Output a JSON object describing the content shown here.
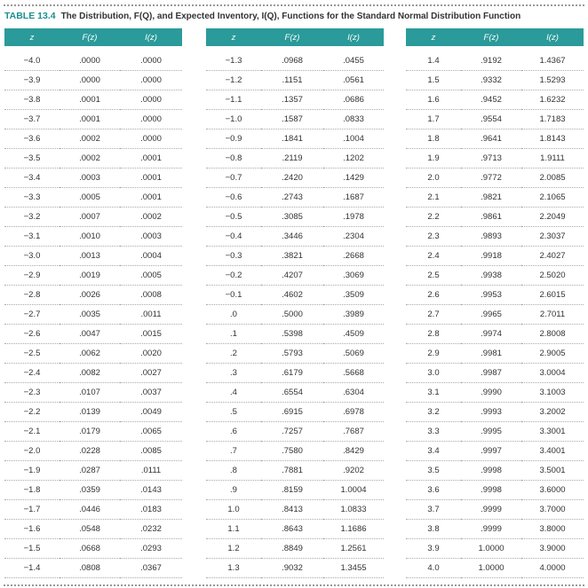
{
  "title": {
    "label": "TABLE 13.4",
    "text": "The Distribution, F(Q), and Expected Inventory, I(Q), Functions for the Standard Normal Distribution Function"
  },
  "table": {
    "header": [
      "z",
      "F(z)",
      "I(z)"
    ],
    "groups": [
      [
        [
          "−4.0",
          ".0000",
          ".0000"
        ],
        [
          "−3.9",
          ".0000",
          ".0000"
        ],
        [
          "−3.8",
          ".0001",
          ".0000"
        ],
        [
          "−3.7",
          ".0001",
          ".0000"
        ],
        [
          "−3.6",
          ".0002",
          ".0000"
        ],
        [
          "−3.5",
          ".0002",
          ".0001"
        ],
        [
          "−3.4",
          ".0003",
          ".0001"
        ],
        [
          "−3.3",
          ".0005",
          ".0001"
        ],
        [
          "−3.2",
          ".0007",
          ".0002"
        ],
        [
          "−3.1",
          ".0010",
          ".0003"
        ],
        [
          "−3.0",
          ".0013",
          ".0004"
        ],
        [
          "−2.9",
          ".0019",
          ".0005"
        ],
        [
          "−2.8",
          ".0026",
          ".0008"
        ],
        [
          "−2.7",
          ".0035",
          ".0011"
        ],
        [
          "−2.6",
          ".0047",
          ".0015"
        ],
        [
          "−2.5",
          ".0062",
          ".0020"
        ],
        [
          "−2.4",
          ".0082",
          ".0027"
        ],
        [
          "−2.3",
          ".0107",
          ".0037"
        ],
        [
          "−2.2",
          ".0139",
          ".0049"
        ],
        [
          "−2.1",
          ".0179",
          ".0065"
        ],
        [
          "−2.0",
          ".0228",
          ".0085"
        ],
        [
          "−1.9",
          ".0287",
          ".0111"
        ],
        [
          "−1.8",
          ".0359",
          ".0143"
        ],
        [
          "−1.7",
          ".0446",
          ".0183"
        ],
        [
          "−1.6",
          ".0548",
          ".0232"
        ],
        [
          "−1.5",
          ".0668",
          ".0293"
        ],
        [
          "−1.4",
          ".0808",
          ".0367"
        ]
      ],
      [
        [
          "−1.3",
          ".0968",
          ".0455"
        ],
        [
          "−1.2",
          ".1151",
          ".0561"
        ],
        [
          "−1.1",
          ".1357",
          ".0686"
        ],
        [
          "−1.0",
          ".1587",
          ".0833"
        ],
        [
          "−0.9",
          ".1841",
          ".1004"
        ],
        [
          "−0.8",
          ".2119",
          ".1202"
        ],
        [
          "−0.7",
          ".2420",
          ".1429"
        ],
        [
          "−0.6",
          ".2743",
          ".1687"
        ],
        [
          "−0.5",
          ".3085",
          ".1978"
        ],
        [
          "−0.4",
          ".3446",
          ".2304"
        ],
        [
          "−0.3",
          ".3821",
          ".2668"
        ],
        [
          "−0.2",
          ".4207",
          ".3069"
        ],
        [
          "−0.1",
          ".4602",
          ".3509"
        ],
        [
          ".0",
          ".5000",
          ".3989"
        ],
        [
          ".1",
          ".5398",
          ".4509"
        ],
        [
          ".2",
          ".5793",
          ".5069"
        ],
        [
          ".3",
          ".6179",
          ".5668"
        ],
        [
          ".4",
          ".6554",
          ".6304"
        ],
        [
          ".5",
          ".6915",
          ".6978"
        ],
        [
          ".6",
          ".7257",
          ".7687"
        ],
        [
          ".7",
          ".7580",
          ".8429"
        ],
        [
          ".8",
          ".7881",
          ".9202"
        ],
        [
          ".9",
          ".8159",
          "1.0004"
        ],
        [
          "1.0",
          ".8413",
          "1.0833"
        ],
        [
          "1.1",
          ".8643",
          "1.1686"
        ],
        [
          "1.2",
          ".8849",
          "1.2561"
        ],
        [
          "1.3",
          ".9032",
          "1.3455"
        ]
      ],
      [
        [
          "1.4",
          ".9192",
          "1.4367"
        ],
        [
          "1.5",
          ".9332",
          "1.5293"
        ],
        [
          "1.6",
          ".9452",
          "1.6232"
        ],
        [
          "1.7",
          ".9554",
          "1.7183"
        ],
        [
          "1.8",
          ".9641",
          "1.8143"
        ],
        [
          "1.9",
          ".9713",
          "1.9111"
        ],
        [
          "2.0",
          ".9772",
          "2.0085"
        ],
        [
          "2.1",
          ".9821",
          "2.1065"
        ],
        [
          "2.2",
          ".9861",
          "2.2049"
        ],
        [
          "2.3",
          ".9893",
          "2.3037"
        ],
        [
          "2.4",
          ".9918",
          "2.4027"
        ],
        [
          "2.5",
          ".9938",
          "2.5020"
        ],
        [
          "2.6",
          ".9953",
          "2.6015"
        ],
        [
          "2.7",
          ".9965",
          "2.7011"
        ],
        [
          "2.8",
          ".9974",
          "2.8008"
        ],
        [
          "2.9",
          ".9981",
          "2.9005"
        ],
        [
          "3.0",
          ".9987",
          "3.0004"
        ],
        [
          "3.1",
          ".9990",
          "3.1003"
        ],
        [
          "3.2",
          ".9993",
          "3.2002"
        ],
        [
          "3.3",
          ".9995",
          "3.3001"
        ],
        [
          "3.4",
          ".9997",
          "3.4001"
        ],
        [
          "3.5",
          ".9998",
          "3.5001"
        ],
        [
          "3.6",
          ".9998",
          "3.6000"
        ],
        [
          "3.7",
          ".9999",
          "3.7000"
        ],
        [
          "3.8",
          ".9999",
          "3.8000"
        ],
        [
          "3.9",
          "1.0000",
          "3.9000"
        ],
        [
          "4.0",
          "1.0000",
          "4.0000"
        ]
      ]
    ]
  }
}
